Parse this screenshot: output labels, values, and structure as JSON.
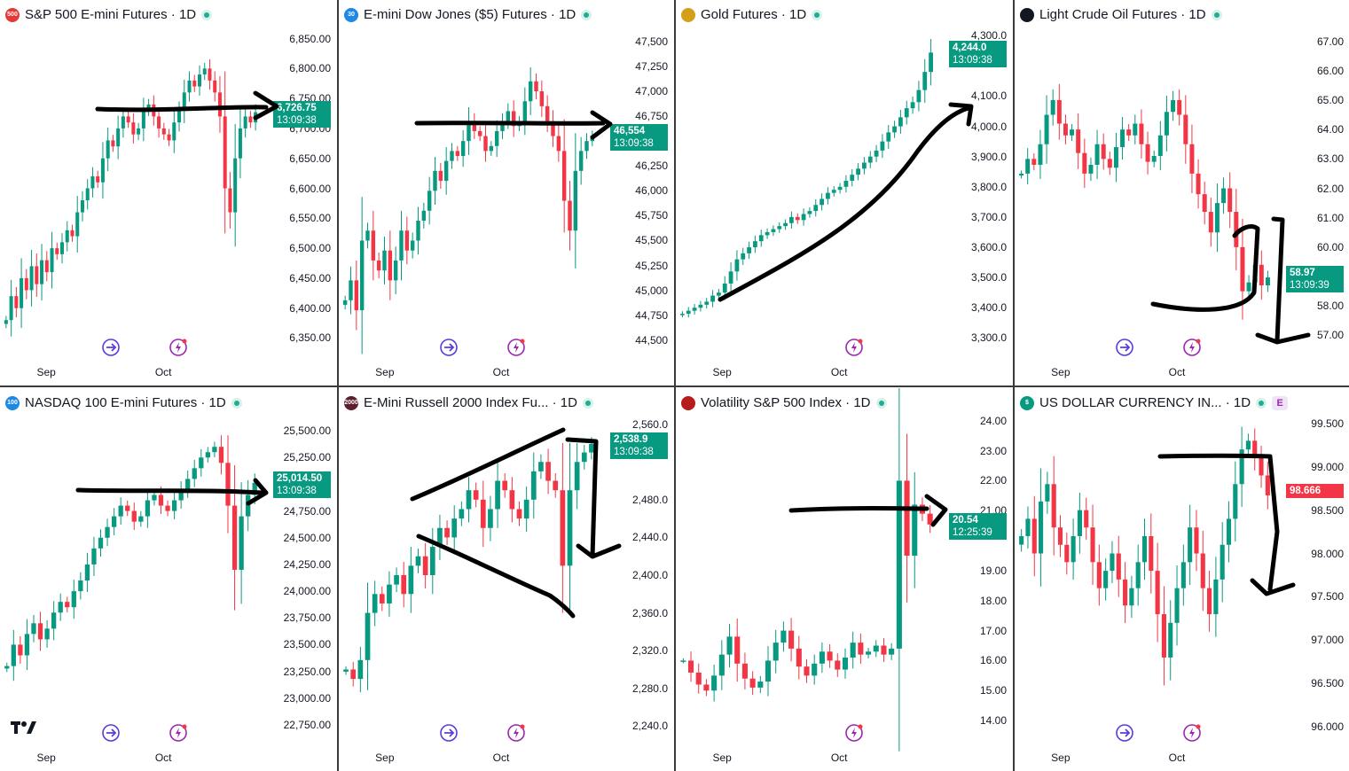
{
  "panels": [
    {
      "id": "sp500",
      "title": "S&P 500 E-mini Futures · 1D",
      "logo_text": "500",
      "logo_color": "#e53935",
      "y_ticks": [
        "6,850.00",
        "6,800.00",
        "6,750.00",
        "6,700.00",
        "6,650.00",
        "6,600.00",
        "6,550.00",
        "6,500.00",
        "6,450.00",
        "6,400.00",
        "6,350.00"
      ],
      "x_ticks": [
        "Sep",
        "Oct"
      ],
      "price": "6,726.75",
      "time": "13:09:38",
      "price_color": "#089981"
    },
    {
      "id": "dow",
      "title": "E-mini Dow Jones ($5) Futures · 1D",
      "logo_text": "30",
      "logo_color": "#1e88e5",
      "y_ticks": [
        "47,500",
        "47,250",
        "47,000",
        "46,750",
        "46,500",
        "46,250",
        "46,000",
        "45,750",
        "45,500",
        "45,250",
        "45,000",
        "44,750",
        "44,500"
      ],
      "x_ticks": [
        "Sep",
        "Oct"
      ],
      "price": "46,554",
      "time": "13:09:38",
      "price_color": "#089981"
    },
    {
      "id": "gold",
      "title": "Gold Futures · 1D",
      "logo_text": "",
      "logo_color": "#d4a017",
      "y_ticks": [
        "4,300.0",
        "4,100.0",
        "4,000.0",
        "3,900.0",
        "3,800.0",
        "3,700.0",
        "3,600.0",
        "3,500.0",
        "3,400.0",
        "3,300.0"
      ],
      "x_ticks": [
        "Sep",
        "Oct"
      ],
      "price": "4,244.0",
      "time": "13:09:38",
      "price_color": "#089981"
    },
    {
      "id": "crude",
      "title": "Light Crude Oil Futures · 1D",
      "logo_text": "",
      "logo_color": "#131722",
      "y_ticks": [
        "67.00",
        "66.00",
        "65.00",
        "64.00",
        "63.00",
        "62.00",
        "61.00",
        "60.00",
        "58.00",
        "57.00"
      ],
      "x_ticks": [
        "Sep",
        "Oct"
      ],
      "price": "58.97",
      "time": "13:09:39",
      "price_color": "#089981"
    },
    {
      "id": "nasdaq",
      "title": "NASDAQ 100 E-mini Futures · 1D",
      "logo_text": "100",
      "logo_color": "#1e88e5",
      "y_ticks": [
        "25,500.00",
        "25,250.00",
        "24,750.00",
        "24,500.00",
        "24,250.00",
        "24,000.00",
        "23,750.00",
        "23,500.00",
        "23,250.00",
        "23,000.00",
        "22,750.00"
      ],
      "x_ticks": [
        "Sep",
        "Oct"
      ],
      "price": "25,014.50",
      "time": "13:09:38",
      "price_color": "#089981"
    },
    {
      "id": "russell",
      "title": "E-Mini Russell 2000 Index Fu... · 1D",
      "logo_text": "2000",
      "logo_color": "#5d1f2e",
      "y_ticks": [
        "2,560.0",
        "2,480.0",
        "2,440.0",
        "2,400.0",
        "2,360.0",
        "2,320.0",
        "2,280.0",
        "2,240.0"
      ],
      "x_ticks": [
        "Sep",
        "Oct"
      ],
      "price": "2,538.9",
      "time": "13:09:38",
      "price_color": "#089981"
    },
    {
      "id": "vix",
      "title": "Volatility S&P 500 Index · 1D",
      "logo_text": "",
      "logo_color": "#b71c1c",
      "y_ticks": [
        "24.00",
        "23.00",
        "22.00",
        "21.00",
        "19.00",
        "18.00",
        "17.00",
        "16.00",
        "15.00",
        "14.00"
      ],
      "x_ticks": [
        "Sep",
        "Oct"
      ],
      "price": "20.54",
      "time": "12:25:39",
      "price_color": "#089981"
    },
    {
      "id": "dxy",
      "title": "US DOLLAR CURRENCY IN... · 1D",
      "logo_text": "$",
      "logo_color": "#089981",
      "badge": "E",
      "y_ticks": [
        "99.500",
        "99.000",
        "98.500",
        "98.000",
        "97.500",
        "97.000",
        "96.500",
        "96.000"
      ],
      "x_ticks": [
        "Sep",
        "Oct"
      ],
      "price": "98.666",
      "time": "",
      "price_color": "#f23645"
    }
  ],
  "chart_data": [
    {
      "type": "candlestick",
      "title": "S&P 500 E-mini Futures · 1D",
      "x_ticks": [
        "Sep",
        "Oct"
      ],
      "last_price": 6726.75,
      "ylim": [
        6330,
        6870
      ],
      "closes": [
        6380,
        6420,
        6400,
        6450,
        6430,
        6470,
        6440,
        6480,
        6460,
        6500,
        6490,
        6510,
        6530,
        6520,
        6560,
        6580,
        6600,
        6620,
        6610,
        6650,
        6680,
        6670,
        6700,
        6720,
        6710,
        6690,
        6700,
        6730,
        6740,
        6720,
        6700,
        6690,
        6680,
        6710,
        6730,
        6760,
        6780,
        6770,
        6790,
        6800,
        6780,
        6760,
        6720,
        6600,
        6560,
        6650,
        6700,
        6720,
        6710,
        6727
      ]
    },
    {
      "type": "candlestick",
      "title": "E-mini Dow Jones ($5) Futures · 1D",
      "x_ticks": [
        "Sep",
        "Oct"
      ],
      "last_price": 46554,
      "ylim": [
        44400,
        47650
      ],
      "closes": [
        44900,
        45100,
        44800,
        45500,
        45600,
        45300,
        45200,
        45400,
        45100,
        45300,
        45600,
        45400,
        45500,
        45700,
        45800,
        46000,
        46200,
        46100,
        46300,
        46400,
        46350,
        46500,
        46700,
        46600,
        46550,
        46400,
        46450,
        46600,
        46700,
        46800,
        46650,
        46700,
        46900,
        47100,
        47000,
        46850,
        46700,
        46550,
        46400,
        45900,
        45600,
        46200,
        46400,
        46500,
        46554
      ]
    },
    {
      "type": "candlestick",
      "title": "Gold Futures · 1D",
      "x_ticks": [
        "Sep",
        "Oct"
      ],
      "last_price": 4244.0,
      "ylim": [
        3260,
        4330
      ],
      "closes": [
        3380,
        3390,
        3400,
        3410,
        3420,
        3440,
        3450,
        3480,
        3520,
        3560,
        3580,
        3600,
        3620,
        3640,
        3650,
        3660,
        3670,
        3680,
        3700,
        3690,
        3710,
        3720,
        3740,
        3760,
        3780,
        3790,
        3800,
        3820,
        3840,
        3860,
        3880,
        3900,
        3920,
        3950,
        3980,
        4000,
        4030,
        4060,
        4080,
        4120,
        4180,
        4244
      ]
    },
    {
      "type": "candlestick",
      "title": "Light Crude Oil Futures · 1D",
      "x_ticks": [
        "Sep",
        "Oct"
      ],
      "last_price": 58.97,
      "ylim": [
        56.5,
        67.5
      ],
      "closes": [
        62.5,
        63.0,
        62.8,
        63.5,
        64.5,
        65.0,
        64.2,
        63.8,
        64.0,
        63.2,
        62.5,
        62.8,
        63.5,
        63.0,
        62.7,
        63.4,
        64.0,
        63.8,
        64.2,
        63.5,
        62.9,
        63.1,
        63.8,
        64.6,
        65.0,
        64.5,
        63.5,
        62.5,
        61.8,
        61.2,
        60.5,
        61.5,
        62.0,
        61.2,
        60.0,
        58.5,
        58.8,
        59.4,
        58.7,
        58.97
      ]
    },
    {
      "type": "candlestick",
      "title": "NASDAQ 100 E-mini Futures · 1D",
      "x_ticks": [
        "Sep",
        "Oct"
      ],
      "last_price": 25014.5,
      "ylim": [
        22650,
        25650
      ],
      "closes": [
        23300,
        23500,
        23400,
        23600,
        23700,
        23550,
        23650,
        23800,
        23900,
        23850,
        24000,
        24100,
        24250,
        24400,
        24500,
        24600,
        24700,
        24800,
        24750,
        24650,
        24700,
        24850,
        24900,
        24800,
        24750,
        24850,
        24950,
        25050,
        25150,
        25250,
        25300,
        25350,
        25200,
        24800,
        24200,
        24700,
        24900,
        25014
      ]
    },
    {
      "type": "candlestick",
      "title": "E-Mini Russell 2000 Index Fu... · 1D",
      "x_ticks": [
        "Sep",
        "Oct"
      ],
      "last_price": 2538.9,
      "ylim": [
        2230,
        2570
      ],
      "closes": [
        2300,
        2290,
        2310,
        2360,
        2380,
        2370,
        2390,
        2400,
        2380,
        2410,
        2420,
        2400,
        2430,
        2450,
        2440,
        2460,
        2470,
        2490,
        2480,
        2450,
        2470,
        2500,
        2490,
        2470,
        2460,
        2480,
        2510,
        2520,
        2500,
        2490,
        2410,
        2490,
        2520,
        2530,
        2539
      ]
    },
    {
      "type": "candlestick",
      "title": "Volatility S&P 500 Index · 1D",
      "x_ticks": [
        "Sep",
        "Oct"
      ],
      "last_price": 20.54,
      "ylim": [
        13.5,
        24.2
      ],
      "closes": [
        16.0,
        15.6,
        15.2,
        15.0,
        15.5,
        16.2,
        16.8,
        15.9,
        15.4,
        15.1,
        15.3,
        16.0,
        16.6,
        17.0,
        16.4,
        15.8,
        15.5,
        15.9,
        16.3,
        16.0,
        15.7,
        16.1,
        16.6,
        16.2,
        16.3,
        16.5,
        16.2,
        16.4,
        22.0,
        19.5,
        21.2,
        20.9,
        20.54
      ]
    },
    {
      "type": "candlestick",
      "title": "US DOLLAR CURRENCY IN... · 1D",
      "x_ticks": [
        "Sep",
        "Oct"
      ],
      "last_price": 98.666,
      "ylim": [
        95.9,
        99.6
      ],
      "closes": [
        98.2,
        98.4,
        98.0,
        98.6,
        98.8,
        98.3,
        98.1,
        97.9,
        98.2,
        98.5,
        98.3,
        97.9,
        97.6,
        97.8,
        98.0,
        97.7,
        97.4,
        97.6,
        97.9,
        98.2,
        97.8,
        97.3,
        96.8,
        97.2,
        97.6,
        97.9,
        98.3,
        98.0,
        97.6,
        97.3,
        97.7,
        98.1,
        98.4,
        98.8,
        99.2,
        99.3,
        99.1,
        98.9,
        98.67
      ]
    }
  ]
}
